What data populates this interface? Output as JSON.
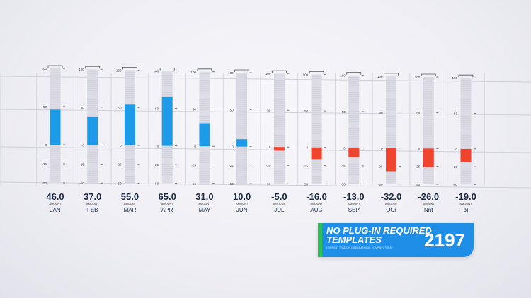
{
  "chart_data": {
    "type": "bar",
    "categories": [
      "JAN",
      "FEB",
      "MAR",
      "APR",
      "MAY",
      "JUN",
      "JUL",
      "AUG",
      "SEP",
      "OCT",
      "NOV",
      "DEC"
    ],
    "category_labels_visible": [
      "JAN",
      "FEB",
      "MAR",
      "APR",
      "MAY",
      "JUN",
      "JUL",
      "AUG",
      "SEP",
      "OCr",
      "Nnt",
      "b)"
    ],
    "values": [
      46.0,
      37.0,
      55.0,
      65.0,
      31.0,
      10.0,
      -5.0,
      -16.0,
      -13.0,
      -32.0,
      -26.0,
      -19.0
    ],
    "value_labels": [
      "46.0",
      "37.0",
      "55.0",
      "65.0",
      "31.0",
      "10.0",
      "-5.0",
      "-16.0",
      "-13.0",
      "-32.0",
      "-26.0",
      "-19.0"
    ],
    "value_sublabel": "AMOUNT",
    "ylim": [
      -50,
      100
    ],
    "yticks": [
      100,
      50,
      0,
      -25,
      -50
    ],
    "ytick_labels": [
      "100",
      "50",
      "0",
      "-25",
      "-50"
    ],
    "colors": {
      "positive": "#1e9be8",
      "negative": "#f0442e",
      "track": "#dcdce6"
    },
    "grid": true
  },
  "banner": {
    "title": "NO PLUG-IN REQUIRED TEMPLATES",
    "subtitle": "CURRENT TRADE IN INTERNATIONAL COMPANY TODAY",
    "number": "2197",
    "color": "#1e8ee6",
    "accent_color": "#2fc05a"
  }
}
